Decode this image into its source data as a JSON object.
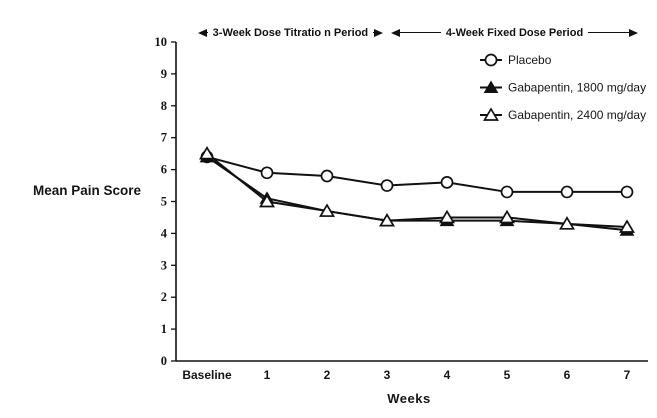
{
  "chart_data": {
    "type": "line",
    "title": "",
    "xlabel": "Weeks",
    "ylabel": "Mean Pain Score",
    "categories": [
      "Baseline",
      "1",
      "2",
      "3",
      "4",
      "5",
      "6",
      "7"
    ],
    "ylim": [
      0,
      10
    ],
    "y_ticks": [
      0,
      1,
      2,
      3,
      4,
      5,
      6,
      7,
      8,
      9,
      10
    ],
    "grid": false,
    "legend_position": "top-right-inside",
    "line_color": "#111111",
    "series": [
      {
        "name": "Placebo",
        "marker": "open-circle",
        "values": [
          6.4,
          5.9,
          5.8,
          5.5,
          5.6,
          5.3,
          5.3,
          5.3
        ]
      },
      {
        "name": "Gabapentin, 1800 mg/day",
        "marker": "filled-triangle",
        "values": [
          6.4,
          5.1,
          4.7,
          4.4,
          4.4,
          4.4,
          4.3,
          4.1
        ]
      },
      {
        "name": "Gabapentin, 2400 mg/day",
        "marker": "open-triangle",
        "values": [
          6.5,
          5.0,
          4.7,
          4.4,
          4.5,
          4.5,
          4.3,
          4.2
        ]
      }
    ],
    "annotations": [
      {
        "label": "3-Week Dose Titratio n Period",
        "from_week_index": -0.15,
        "to_week_index": 2.93
      },
      {
        "label": "4-Week Fixed Dose Period",
        "from_week_index": 3.07,
        "to_week_index": 7.18
      }
    ]
  }
}
